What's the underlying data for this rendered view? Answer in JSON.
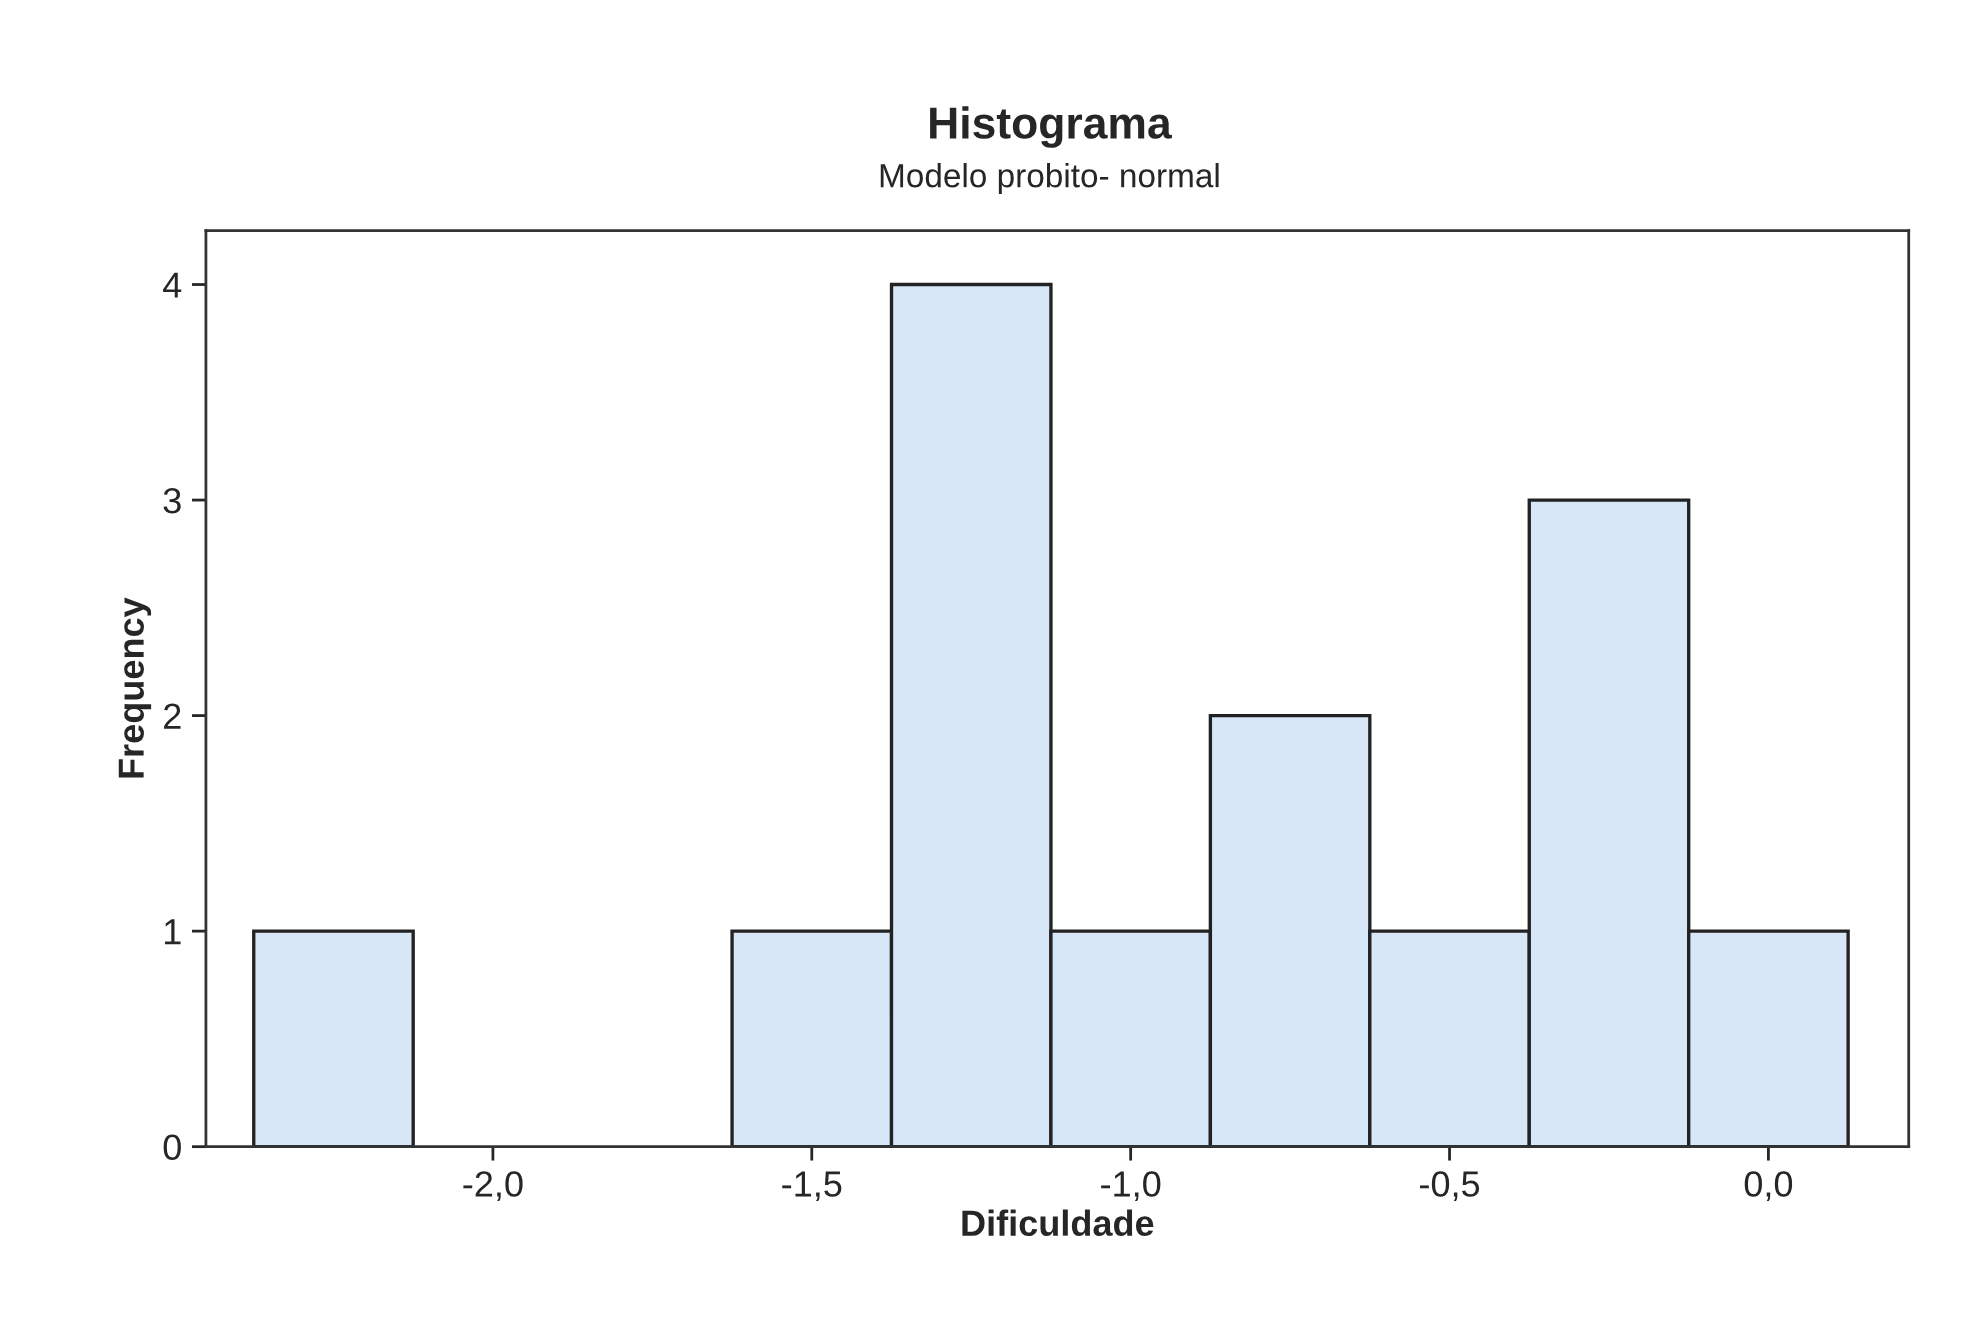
{
  "chart_data": {
    "type": "histogram",
    "title": "Histograma",
    "subtitle": "Modelo probito- normal",
    "xlabel": "Dificuldade",
    "ylabel": "Frequency",
    "bins": [
      -2.375,
      -2.125,
      -1.875,
      -1.625,
      -1.375,
      -1.125,
      -0.875,
      -0.625,
      -0.375,
      -0.125,
      0.125
    ],
    "values": [
      1,
      0,
      0,
      1,
      4,
      1,
      2,
      1,
      3,
      1
    ],
    "color": "#d8e7f8",
    "xlim": [
      -2.45,
      0.22
    ],
    "xticks": [
      {
        "value": -2.0,
        "label": "-2,0"
      },
      {
        "value": -1.5,
        "label": "-1,5"
      },
      {
        "value": -1.0,
        "label": "-1,0"
      },
      {
        "value": -0.5,
        "label": "-0,5"
      },
      {
        "value": 0.0,
        "label": "0,0"
      }
    ],
    "ylim": [
      0,
      4.25
    ],
    "yticks": [
      0,
      1,
      2,
      3,
      4
    ],
    "grid": false,
    "legend": false
  }
}
